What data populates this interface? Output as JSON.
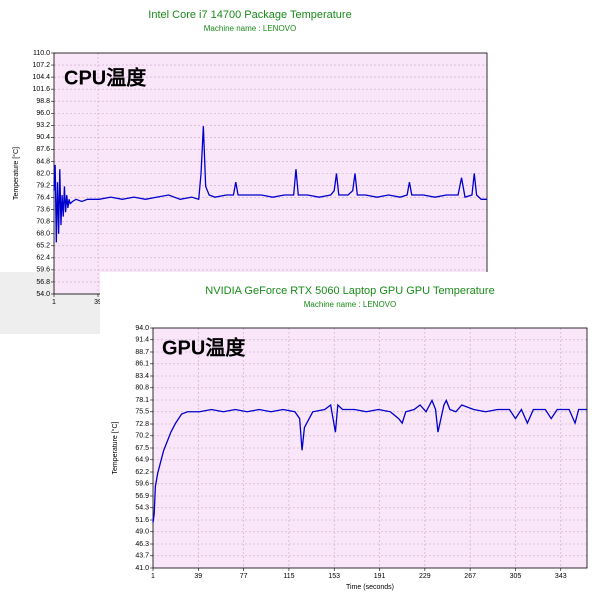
{
  "chart_data": [
    {
      "type": "line",
      "title": "Intel Core i7 14700 Package Temperature",
      "subtitle": "Machine name : LENOVO",
      "annotation": "CPU温度",
      "ylabel": "Temperature [°C]",
      "xlim": [
        1,
        375
      ],
      "xticks": [
        1,
        39
      ],
      "ylim": [
        54,
        110
      ],
      "yticks": [
        {
          "value": 54,
          "label": "54.0"
        },
        56.8,
        59.6,
        62.4,
        65.2,
        {
          "value": 68,
          "label": "68.0"
        },
        70.8,
        73.6,
        76.4,
        79.2,
        {
          "value": 82,
          "label": "82.0"
        },
        84.8,
        87.6,
        90.4,
        93.2,
        {
          "value": 96,
          "label": "96.0"
        },
        98.8,
        101.6,
        104.4,
        107.2,
        {
          "value": 110,
          "label": "110.0"
        }
      ],
      "grid": true,
      "series": [
        {
          "color": "#0000cc",
          "x": [
            1,
            2,
            3,
            4,
            5,
            6,
            7,
            8,
            9,
            10,
            11,
            12,
            13,
            14,
            15,
            17,
            20,
            25,
            30,
            40,
            50,
            60,
            70,
            80,
            90,
            100,
            110,
            120,
            126,
            128,
            130,
            132,
            135,
            140,
            150,
            156,
            158,
            160,
            170,
            180,
            190,
            200,
            208,
            210,
            212,
            220,
            230,
            240,
            243,
            245,
            247,
            255,
            259,
            261,
            263,
            270,
            280,
            290,
            300,
            306,
            308,
            310,
            320,
            330,
            340,
            350,
            353,
            356,
            362,
            364,
            366,
            370,
            375
          ],
          "values": [
            78,
            84,
            66,
            80,
            68,
            83,
            70,
            77,
            72,
            79,
            73,
            77,
            74,
            76,
            75,
            75.5,
            76,
            75.5,
            76,
            76,
            76.5,
            76,
            76.5,
            76,
            76.5,
            77,
            76,
            76.5,
            76,
            82,
            93,
            79,
            77,
            76.5,
            77,
            77,
            80,
            77,
            77,
            77,
            76.5,
            77,
            77,
            83,
            77,
            77,
            76.5,
            77,
            78,
            82,
            77,
            77,
            78,
            82,
            77,
            77,
            76.5,
            77,
            76.5,
            77,
            80,
            77,
            77,
            76.5,
            77,
            77,
            81,
            76.5,
            77,
            82,
            77,
            76,
            76
          ]
        }
      ]
    },
    {
      "type": "line",
      "title": "NVIDIA GeForce RTX 5060 Laptop GPU GPU Temperature",
      "subtitle": "Machine name : LENOVO",
      "annotation": "GPU温度",
      "ylabel": "Temperature [°C]",
      "xlabel": "Time (seconds)",
      "xlim": [
        1,
        365
      ],
      "xticks": [
        1,
        39,
        77,
        115,
        153,
        191,
        229,
        267,
        305,
        343
      ],
      "ylim": [
        41,
        94
      ],
      "yticks": [
        {
          "value": 41,
          "label": "41.0"
        },
        43.7,
        46.3,
        {
          "value": 49,
          "label": "49.0"
        },
        51.6,
        54.3,
        56.9,
        59.6,
        62.2,
        64.9,
        67.5,
        70.2,
        72.8,
        75.5,
        78.1,
        80.8,
        83.4,
        86.1,
        88.7,
        91.4,
        {
          "value": 94,
          "label": "94.0"
        }
      ],
      "grid": true,
      "series": [
        {
          "color": "#0000cc",
          "x": [
            1,
            2,
            3,
            5,
            7,
            10,
            13,
            16,
            20,
            25,
            30,
            40,
            50,
            60,
            70,
            80,
            90,
            100,
            110,
            120,
            124,
            126,
            128,
            135,
            145,
            150,
            152,
            154,
            156,
            160,
            170,
            180,
            190,
            200,
            207,
            210,
            213,
            220,
            225,
            230,
            235,
            238,
            240,
            245,
            247,
            250,
            255,
            260,
            270,
            280,
            290,
            300,
            305,
            310,
            315,
            320,
            330,
            335,
            340,
            350,
            355,
            358,
            362,
            365
          ],
          "values": [
            51,
            53,
            59,
            62,
            64,
            67,
            69,
            71,
            73,
            75,
            75.5,
            75.5,
            76,
            75.5,
            76,
            75.5,
            76,
            75.5,
            76,
            75.5,
            74,
            67,
            72,
            75.5,
            76,
            77,
            74,
            71,
            77,
            76,
            76,
            75.5,
            76,
            75.5,
            74,
            73,
            75.5,
            76,
            77,
            75.5,
            78,
            76,
            71,
            77,
            78,
            76,
            75.5,
            77,
            76,
            75.5,
            76,
            76,
            74,
            76,
            73,
            76,
            76,
            74,
            76,
            76,
            73,
            76,
            76,
            76
          ]
        }
      ]
    }
  ]
}
